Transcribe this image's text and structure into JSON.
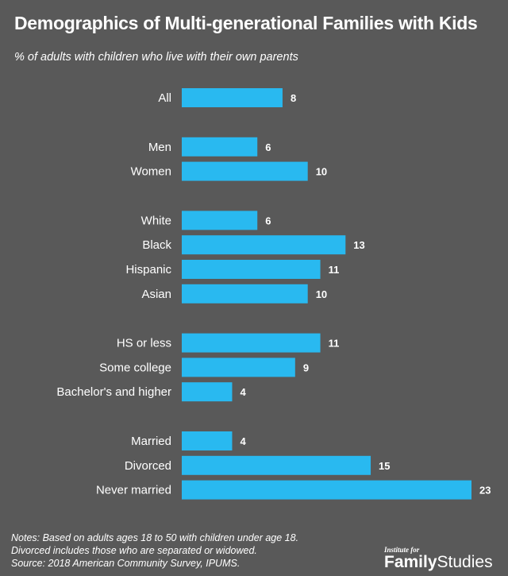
{
  "chart_data": {
    "type": "bar",
    "orientation": "horizontal",
    "title": "Demographics of Multi-generational Families with Kids",
    "subtitle": "% of adults with children who live with their own parents",
    "categories": [
      "All",
      "Men",
      "Women",
      "White",
      "Black",
      "Hispanic",
      "Asian",
      "HS or less",
      "Some college",
      "Bachelor's and higher",
      "Married",
      "Divorced",
      "Never married"
    ],
    "groups": [
      [
        "All"
      ],
      [
        "Men",
        "Women"
      ],
      [
        "White",
        "Black",
        "Hispanic",
        "Asian"
      ],
      [
        "HS or less",
        "Some college",
        "Bachelor's and higher"
      ],
      [
        "Married",
        "Divorced",
        "Never married"
      ]
    ],
    "values": [
      8,
      6,
      10,
      6,
      13,
      11,
      10,
      11,
      9,
      4,
      4,
      15,
      23
    ],
    "xlim": [
      0,
      23
    ],
    "grid": false,
    "bar_color": "#29b9f0",
    "background_color": "#595959"
  },
  "notes": [
    "Notes: Based on adults ages 18 to 50 with children under age 18.",
    "Divorced includes those who are separated or widowed.",
    "Source: 2018 American Community Survey, IPUMS."
  ],
  "logo": {
    "small": "Institute for",
    "bold": "Family",
    "light": "Studies"
  }
}
